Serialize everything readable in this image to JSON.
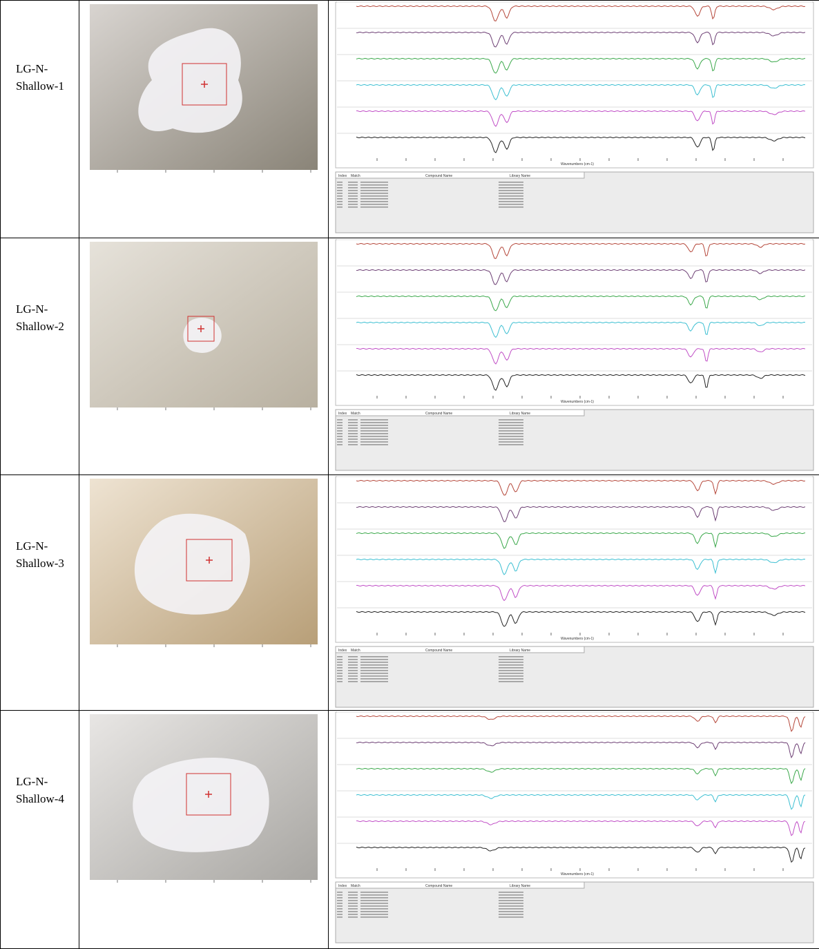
{
  "rows": [
    {
      "label": "LG-N-Shallow-1",
      "spectrum": {
        "x_label": "Wavenumbers (cm-1)"
      },
      "results_headers": [
        "Index",
        "Match",
        "Compound Name",
        "Library Name"
      ]
    },
    {
      "label": "LG-N-Shallow-2",
      "spectrum": {
        "x_label": "Wavenumbers (cm-1)"
      },
      "results_headers": [
        "Index",
        "Match",
        "Compound Name",
        "Library Name"
      ]
    },
    {
      "label": "LG-N-Shallow-3",
      "spectrum": {
        "x_label": "Wavenumbers (cm-1)"
      },
      "results_headers": [
        "Index",
        "Match",
        "Compound Name",
        "Library Name"
      ]
    },
    {
      "label": "LG-N-Shallow-4",
      "spectrum": {
        "x_label": "Wavenumbers (cm-1)"
      },
      "results_headers": [
        "Index",
        "Match",
        "Compound Name",
        "Library Name"
      ]
    }
  ]
}
